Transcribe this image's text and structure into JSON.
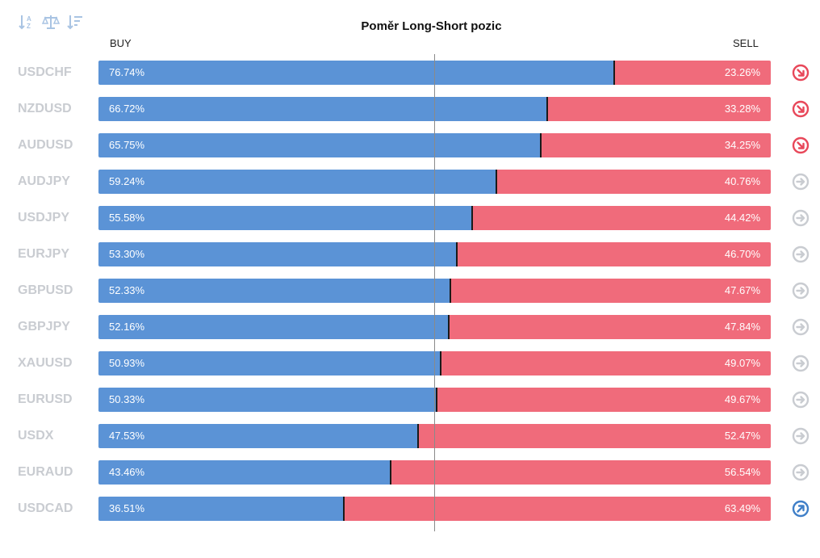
{
  "toolbar": {
    "sort_az_icon": "sort-az-icon",
    "balance_icon": "balance-icon",
    "sort_desc_icon": "sort-desc-icon",
    "color": "#a9c4e3"
  },
  "chart_data": {
    "type": "bar",
    "orientation": "horizontal-stacked",
    "title": "Poměr Long-Short pozic",
    "series": [
      {
        "name": "BUY",
        "color": "#5b93d6"
      },
      {
        "name": "SELL",
        "color": "#f06b7b"
      }
    ],
    "xlim": [
      0,
      100
    ],
    "rows": [
      {
        "symbol": "USDCHF",
        "buy": 76.74,
        "sell": 23.26,
        "buy_label": "76.74%",
        "sell_label": "23.26%",
        "signal": "down"
      },
      {
        "symbol": "NZDUSD",
        "buy": 66.72,
        "sell": 33.28,
        "buy_label": "66.72%",
        "sell_label": "33.28%",
        "signal": "down"
      },
      {
        "symbol": "AUDUSD",
        "buy": 65.75,
        "sell": 34.25,
        "buy_label": "65.75%",
        "sell_label": "34.25%",
        "signal": "down"
      },
      {
        "symbol": "AUDJPY",
        "buy": 59.24,
        "sell": 40.76,
        "buy_label": "59.24%",
        "sell_label": "40.76%",
        "signal": "neutral"
      },
      {
        "symbol": "USDJPY",
        "buy": 55.58,
        "sell": 44.42,
        "buy_label": "55.58%",
        "sell_label": "44.42%",
        "signal": "neutral"
      },
      {
        "symbol": "EURJPY",
        "buy": 53.3,
        "sell": 46.7,
        "buy_label": "53.30%",
        "sell_label": "46.70%",
        "signal": "neutral"
      },
      {
        "symbol": "GBPUSD",
        "buy": 52.33,
        "sell": 47.67,
        "buy_label": "52.33%",
        "sell_label": "47.67%",
        "signal": "neutral"
      },
      {
        "symbol": "GBPJPY",
        "buy": 52.16,
        "sell": 47.84,
        "buy_label": "52.16%",
        "sell_label": "47.84%",
        "signal": "neutral"
      },
      {
        "symbol": "XAUUSD",
        "buy": 50.93,
        "sell": 49.07,
        "buy_label": "50.93%",
        "sell_label": "49.07%",
        "signal": "neutral"
      },
      {
        "symbol": "EURUSD",
        "buy": 50.33,
        "sell": 49.67,
        "buy_label": "50.33%",
        "sell_label": "49.67%",
        "signal": "neutral"
      },
      {
        "symbol": "USDX",
        "buy": 47.53,
        "sell": 52.47,
        "buy_label": "47.53%",
        "sell_label": "52.47%",
        "signal": "neutral"
      },
      {
        "symbol": "EURAUD",
        "buy": 43.46,
        "sell": 56.54,
        "buy_label": "43.46%",
        "sell_label": "56.54%",
        "signal": "neutral"
      },
      {
        "symbol": "USDCAD",
        "buy": 36.51,
        "sell": 63.49,
        "buy_label": "36.51%",
        "sell_label": "63.49%",
        "signal": "up"
      }
    ],
    "signal_colors": {
      "down": "#e8485a",
      "neutral": "#c9ccd1",
      "up": "#3f7fc8"
    },
    "signal_icons": {
      "down": "arrow-down-right-circle-icon",
      "neutral": "arrow-right-circle-icon",
      "up": "arrow-up-right-circle-icon"
    }
  }
}
